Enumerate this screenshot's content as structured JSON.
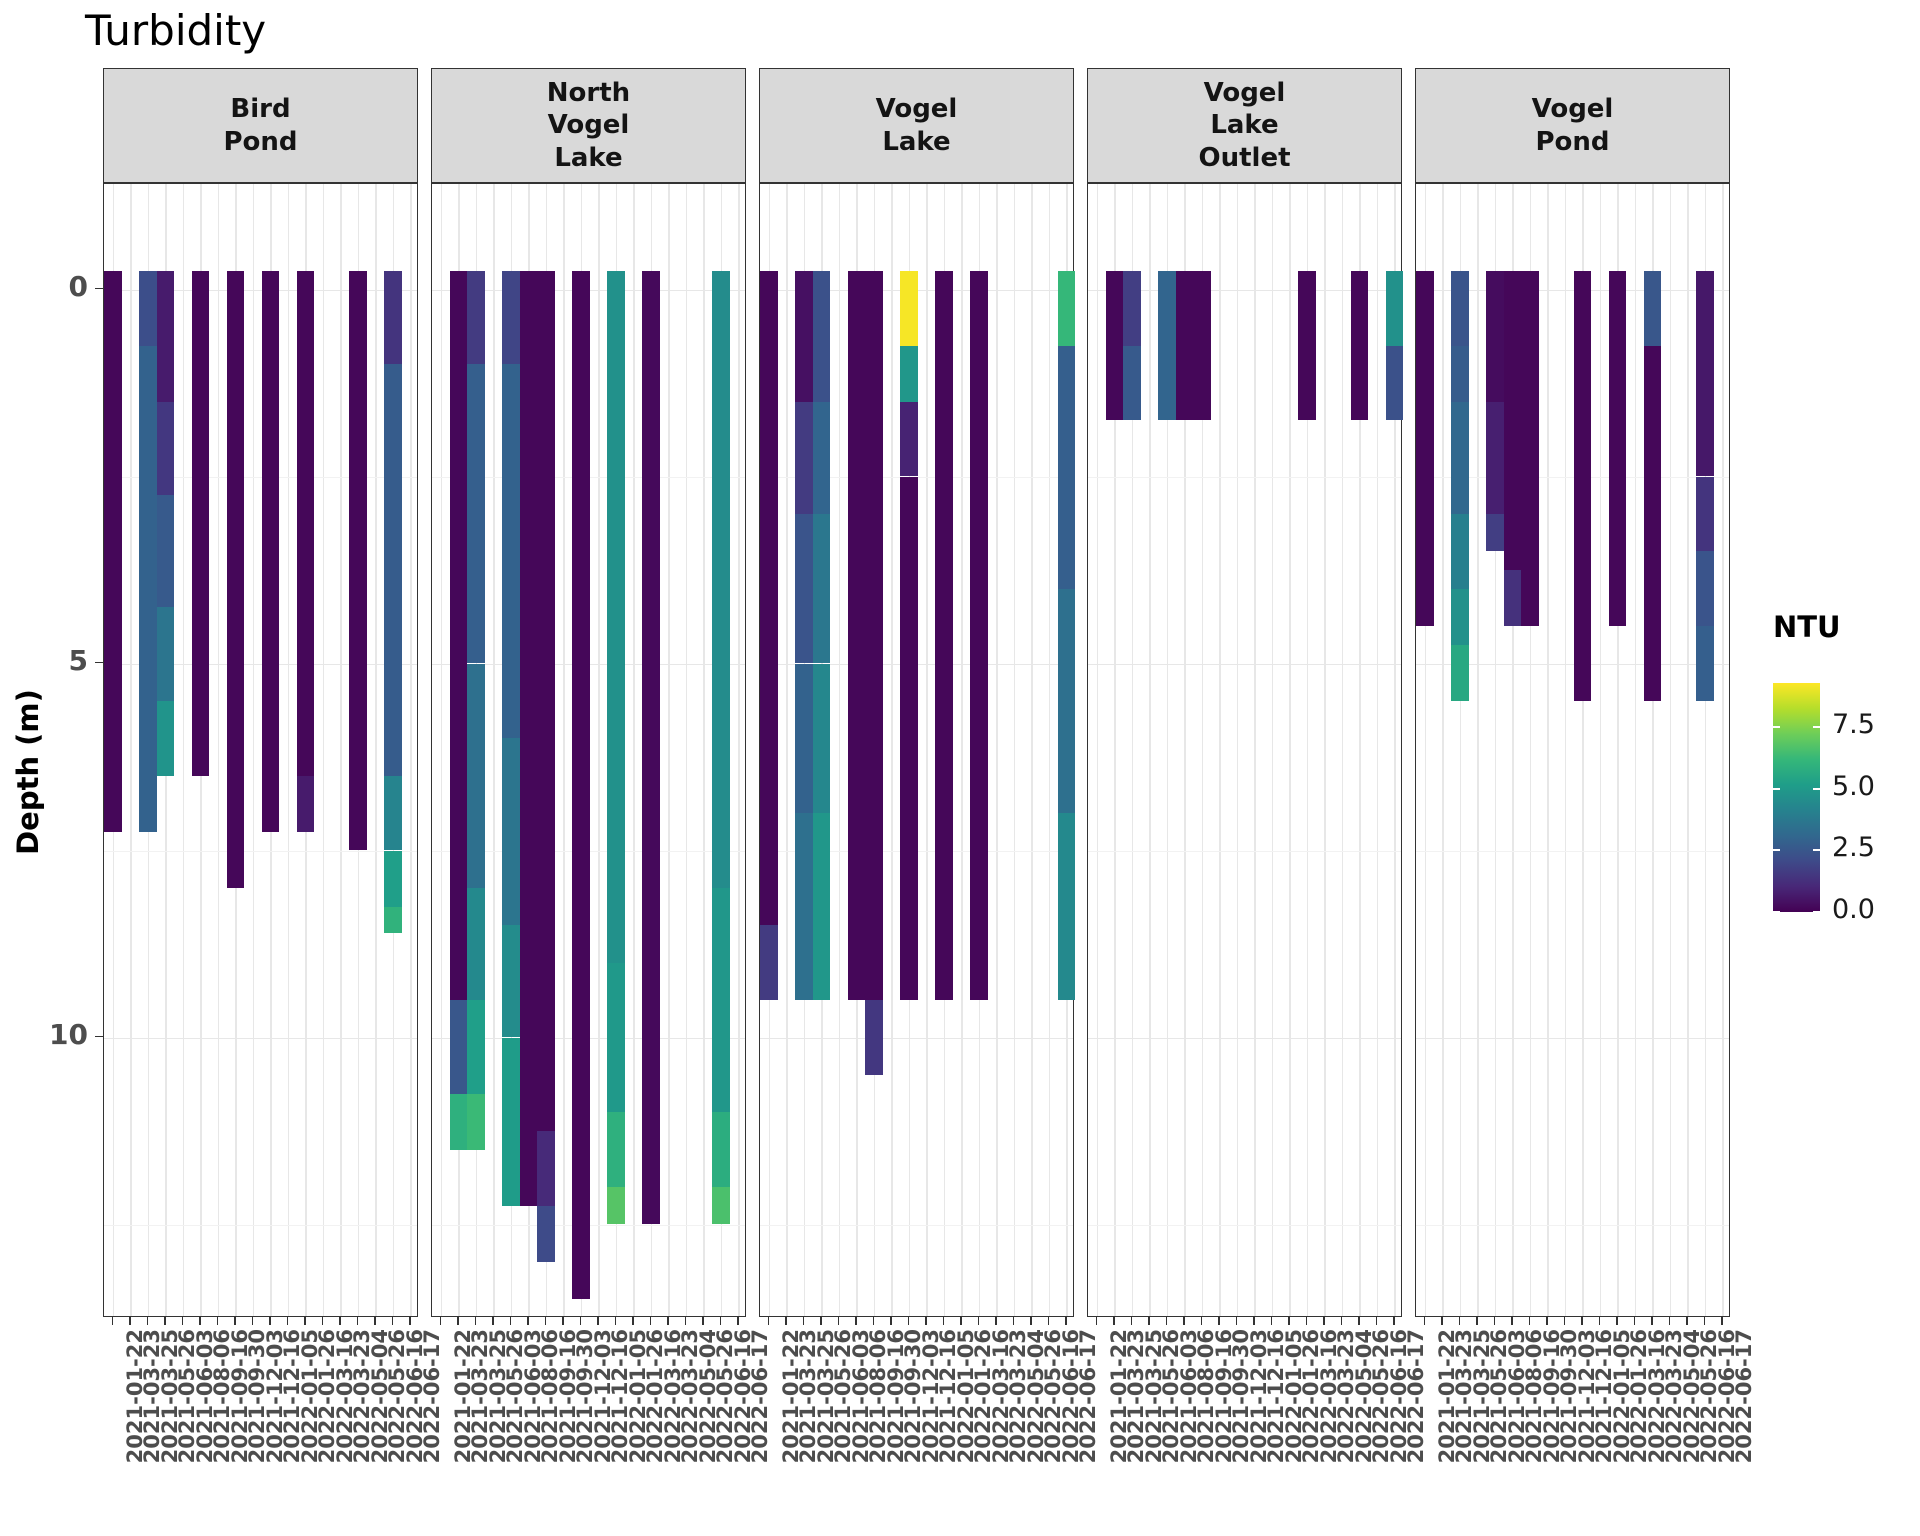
{
  "title": "Turbidity",
  "y_axis": {
    "label": "Depth (m)",
    "ticks": [
      "0",
      "5",
      "10"
    ],
    "tick_values": [
      0,
      5,
      10
    ],
    "minor_gridlines": [
      2.5,
      7.5,
      12.5
    ],
    "depth_min": -0.875,
    "depth_max": 13.75
  },
  "x_axis": {
    "dates": [
      "2021-01-22",
      "2021-03-23",
      "2021-03-25",
      "2021-05-26",
      "2021-06-03",
      "2021-08-06",
      "2021-09-16",
      "2021-09-30",
      "2021-12-03",
      "2021-12-16",
      "2022-01-05",
      "2022-01-26",
      "2022-03-16",
      "2022-03-23",
      "2022-05-04",
      "2022-05-26",
      "2022-06-16",
      "2022-06-17"
    ]
  },
  "legend": {
    "title": "NTU",
    "ticks": [
      "0.0",
      "2.5",
      "5.0",
      "7.5"
    ],
    "tick_values": [
      0,
      2.5,
      5,
      7.5
    ],
    "domain": [
      0,
      9.3
    ]
  },
  "colors": {
    "strip_bg": "#d9d9d9",
    "panel_border": "#333333",
    "grid_major": "#e7e7e7",
    "grid_minor": "#f2f2f2",
    "axis_text": "#4d4d4d",
    "viridis_stops": [
      [
        0.0,
        "#440154"
      ],
      [
        0.111,
        "#482878"
      ],
      [
        0.222,
        "#3e4a89"
      ],
      [
        0.333,
        "#31688e"
      ],
      [
        0.444,
        "#26828e"
      ],
      [
        0.556,
        "#1f9e89"
      ],
      [
        0.667,
        "#35b779"
      ],
      [
        0.778,
        "#6ece58"
      ],
      [
        0.889,
        "#b5de2b"
      ],
      [
        1.0,
        "#fde725"
      ]
    ]
  },
  "chart_data": {
    "type": "heatmap",
    "title": "Turbidity",
    "xlabel": "",
    "ylabel": "Depth (m)",
    "value_label": "NTU",
    "value_domain": [
      0,
      9.3
    ],
    "depth_axis": {
      "ticks": [
        0,
        5,
        10
      ],
      "range": [
        -0.875,
        13.75
      ]
    },
    "facets": [
      {
        "label_lines": [
          "Bird",
          "Pond"
        ],
        "bars": [
          {
            "col": 1,
            "segments": [
              [
                0,
                7.25,
                0.15
              ]
            ]
          },
          {
            "col": 3,
            "segments": [
              [
                0,
                0.75,
                2.2
              ],
              [
                0.75,
                7.25,
                2.9
              ]
            ]
          },
          {
            "col": 4,
            "segments": [
              [
                0,
                1.5,
                0.7
              ],
              [
                1.5,
                2.75,
                1.5
              ],
              [
                2.75,
                4.25,
                2.6
              ],
              [
                4.25,
                5.5,
                3.6
              ],
              [
                5.5,
                6.5,
                4.8
              ]
            ]
          },
          {
            "col": 6,
            "segments": [
              [
                0,
                6.5,
                0.15
              ]
            ]
          },
          {
            "col": 8,
            "segments": [
              [
                0,
                8,
                0.15
              ]
            ]
          },
          {
            "col": 10,
            "segments": [
              [
                0,
                7.25,
                0.15
              ]
            ]
          },
          {
            "col": 12,
            "segments": [
              [
                0,
                6.5,
                0.15
              ],
              [
                6.5,
                7.25,
                0.7
              ]
            ]
          },
          {
            "col": 15,
            "segments": [
              [
                0,
                7.5,
                0.15
              ]
            ]
          },
          {
            "col": 17,
            "segments": [
              [
                0,
                1,
                1.4
              ],
              [
                1,
                6.5,
                2.7
              ],
              [
                6.5,
                7.5,
                4.2
              ],
              [
                7.5,
                8.25,
                5.2
              ],
              [
                8.25,
                8.6,
                6.0
              ]
            ]
          }
        ]
      },
      {
        "label_lines": [
          "North",
          "Vogel",
          "Lake"
        ],
        "bars": [
          {
            "col": 2,
            "segments": [
              [
                0,
                9.5,
                0.15
              ],
              [
                9.5,
                10.75,
                2.5
              ],
              [
                10.75,
                11.5,
                5.9
              ]
            ]
          },
          {
            "col": 3,
            "segments": [
              [
                0,
                1,
                1.6
              ],
              [
                1,
                5,
                2.8
              ],
              [
                5,
                8,
                3.4
              ],
              [
                8,
                9.5,
                4.4
              ],
              [
                9.5,
                10.75,
                5.2
              ],
              [
                10.75,
                11.5,
                6.3
              ]
            ]
          },
          {
            "col": 5,
            "segments": [
              [
                0,
                1,
                1.9
              ],
              [
                1,
                6,
                2.9
              ],
              [
                6,
                8.5,
                3.6
              ],
              [
                8.5,
                10,
                4.5
              ],
              [
                10,
                12.25,
                5.1
              ]
            ]
          },
          {
            "col": 6,
            "segments": [
              [
                0,
                12.25,
                0.15
              ]
            ]
          },
          {
            "col": 7,
            "segments": [
              [
                0,
                11.25,
                0.15
              ],
              [
                11.25,
                12.25,
                1.1
              ],
              [
                12.25,
                13,
                2.1
              ]
            ]
          },
          {
            "col": 9,
            "segments": [
              [
                0,
                13.5,
                0.15
              ]
            ]
          },
          {
            "col": 11,
            "segments": [
              [
                0,
                9,
                4.7
              ],
              [
                9,
                11,
                5.0
              ],
              [
                11,
                12,
                5.9
              ],
              [
                12,
                12.5,
                6.8
              ]
            ]
          },
          {
            "col": 13,
            "segments": [
              [
                0,
                12.5,
                0.2
              ]
            ]
          },
          {
            "col": 17,
            "segments": [
              [
                0,
                8,
                4.5
              ],
              [
                8,
                11,
                4.9
              ],
              [
                11,
                12,
                5.8
              ],
              [
                12,
                12.5,
                6.6
              ]
            ]
          }
        ]
      },
      {
        "label_lines": [
          "Vogel",
          "Lake"
        ],
        "bars": [
          {
            "col": 1,
            "segments": [
              [
                0,
                8.5,
                0.15
              ],
              [
                8.5,
                9.5,
                1.6
              ]
            ]
          },
          {
            "col": 3,
            "segments": [
              [
                0,
                1.5,
                0.4
              ],
              [
                1.5,
                3,
                1.6
              ],
              [
                3,
                5,
                2.4
              ],
              [
                5,
                7,
                2.9
              ],
              [
                7,
                9.5,
                3.4
              ]
            ]
          },
          {
            "col": 4,
            "segments": [
              [
                0,
                1.5,
                2.3
              ],
              [
                1.5,
                3,
                3.0
              ],
              [
                3,
                5,
                3.7
              ],
              [
                5,
                7,
                4.3
              ],
              [
                7,
                9.5,
                4.9
              ]
            ]
          },
          {
            "col": 6,
            "segments": [
              [
                0,
                9.5,
                0.15
              ]
            ]
          },
          {
            "col": 7,
            "segments": [
              [
                0,
                9.5,
                0.15
              ],
              [
                9.5,
                10.5,
                1.5
              ]
            ]
          },
          {
            "col": 9,
            "segments": [
              [
                0,
                0.75,
                9.2
              ],
              [
                0.75,
                1.5,
                4.9
              ],
              [
                1.5,
                2.5,
                0.9
              ],
              [
                2.5,
                9.5,
                0.15
              ]
            ]
          },
          {
            "col": 11,
            "segments": [
              [
                0,
                9.5,
                0.15
              ]
            ]
          },
          {
            "col": 13,
            "segments": [
              [
                0,
                9.5,
                0.15
              ]
            ]
          },
          {
            "col": 18,
            "segments": [
              [
                0,
                0.75,
                6.2
              ],
              [
                0.75,
                4,
                2.8
              ],
              [
                4,
                7,
                3.4
              ],
              [
                7,
                9.5,
                4.4
              ]
            ]
          }
        ]
      },
      {
        "label_lines": [
          "Vogel",
          "Lake",
          "Outlet"
        ],
        "bars": [
          {
            "col": 2,
            "segments": [
              [
                0,
                1.75,
                0.15
              ]
            ]
          },
          {
            "col": 3,
            "segments": [
              [
                0,
                0.75,
                1.7
              ],
              [
                0.75,
                1.75,
                2.6
              ]
            ]
          },
          {
            "col": 5,
            "segments": [
              [
                0,
                1.75,
                3.0
              ]
            ]
          },
          {
            "col": 6,
            "segments": [
              [
                0,
                1.75,
                0.15
              ]
            ]
          },
          {
            "col": 7,
            "segments": [
              [
                0,
                1.75,
                0.15
              ]
            ]
          },
          {
            "col": 13,
            "segments": [
              [
                0,
                1.75,
                0.15
              ]
            ]
          },
          {
            "col": 16,
            "segments": [
              [
                0,
                1.75,
                0.15
              ]
            ]
          },
          {
            "col": 18,
            "segments": [
              [
                0,
                0.75,
                4.7
              ],
              [
                0.75,
                1.75,
                2.3
              ]
            ]
          }
        ]
      },
      {
        "label_lines": [
          "Vogel",
          "Pond"
        ],
        "bars": [
          {
            "col": 1,
            "segments": [
              [
                0,
                4.5,
                0.15
              ]
            ]
          },
          {
            "col": 3,
            "segments": [
              [
                0,
                0.75,
                2.4
              ],
              [
                0.75,
                1.5,
                2.7
              ],
              [
                1.5,
                3,
                3.1
              ],
              [
                3,
                4,
                4.0
              ],
              [
                4,
                4.75,
                4.7
              ],
              [
                4.75,
                5.5,
                5.6
              ]
            ]
          },
          {
            "col": 5,
            "segments": [
              [
                0,
                1.5,
                0.3
              ],
              [
                1.5,
                3,
                0.8
              ],
              [
                3,
                3.5,
                1.7
              ]
            ]
          },
          {
            "col": 6,
            "segments": [
              [
                0,
                3.75,
                0.15
              ],
              [
                3.75,
                4.5,
                1.3
              ]
            ]
          },
          {
            "col": 7,
            "segments": [
              [
                0,
                4.5,
                0.15
              ]
            ]
          },
          {
            "col": 10,
            "segments": [
              [
                0,
                5.5,
                0.15
              ]
            ]
          },
          {
            "col": 12,
            "segments": [
              [
                0,
                4.5,
                0.15
              ]
            ]
          },
          {
            "col": 14,
            "segments": [
              [
                0,
                0.75,
                2.5
              ],
              [
                0.75,
                5.5,
                0.15
              ]
            ]
          },
          {
            "col": 17,
            "segments": [
              [
                0,
                2.5,
                0.6
              ],
              [
                2.5,
                3.5,
                1.4
              ],
              [
                3.5,
                4.5,
                2.4
              ],
              [
                4.5,
                5.5,
                2.8
              ]
            ]
          }
        ]
      }
    ]
  }
}
